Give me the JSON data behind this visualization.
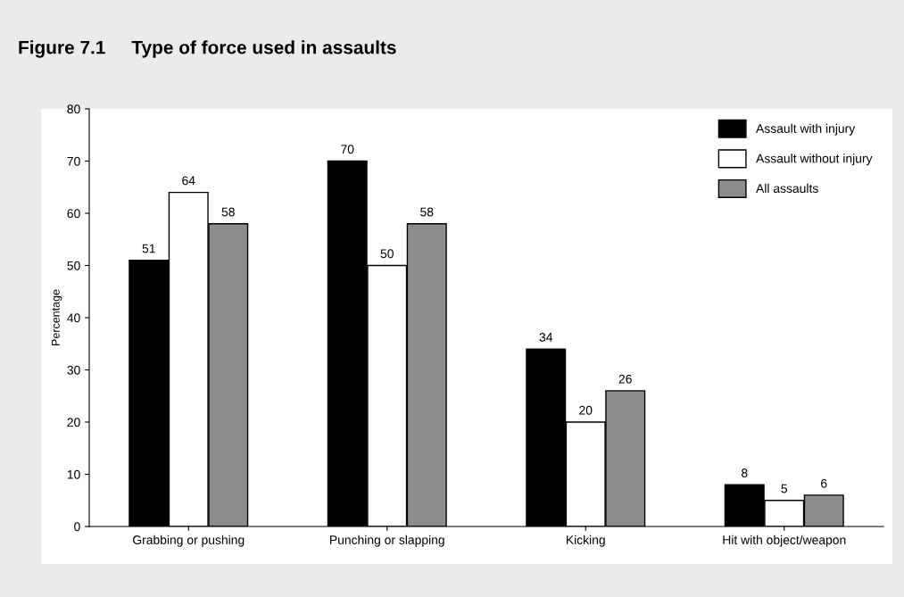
{
  "chart_data": {
    "type": "bar",
    "title": "Figure 7.1     Type of force used in assaults",
    "ylabel": "Percentage",
    "categories": [
      "Grabbing or pushing",
      "Punching or slapping",
      "Kicking",
      "Hit with object/weapon"
    ],
    "series": [
      {
        "name": "Assault with injury",
        "color": "#000000",
        "values": [
          51,
          70,
          34,
          8
        ]
      },
      {
        "name": "Assault without injury",
        "color": "#ffffff",
        "values": [
          64,
          50,
          20,
          5
        ]
      },
      {
        "name": "All assaults",
        "color": "#8c8c8c",
        "values": [
          58,
          58,
          26,
          6
        ]
      }
    ],
    "ylim": [
      0,
      80
    ],
    "yticks": [
      0,
      10,
      20,
      30,
      40,
      50,
      60,
      70,
      80
    ],
    "data_labels": true,
    "legend": "top right",
    "grid": false
  }
}
